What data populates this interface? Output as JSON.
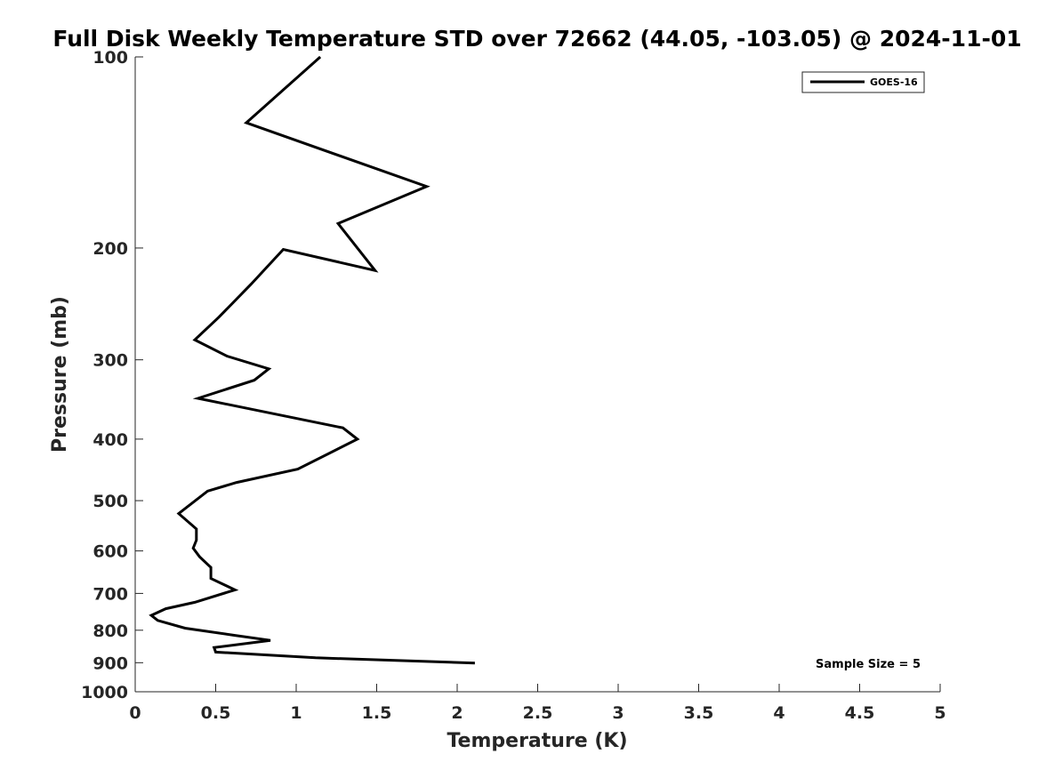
{
  "chart_data": {
    "type": "line",
    "title": "Full Disk Weekly Temperature STD over 72662 (44.05, -103.05) @ 2024-11-01",
    "xlabel": "Temperature (K)",
    "ylabel": "Pressure (mb)",
    "xlim": [
      0,
      5
    ],
    "ylim": [
      100,
      1000
    ],
    "y_scale": "log",
    "y_reversed": true,
    "x_ticks": [
      "0",
      "0.5",
      "1",
      "1.5",
      "2",
      "2.5",
      "3",
      "3.5",
      "4",
      "4.5",
      "5"
    ],
    "y_ticks": [
      "100",
      "200",
      "300",
      "400",
      "500",
      "600",
      "700",
      "800",
      "900",
      "1000"
    ],
    "grid": false,
    "legend": {
      "placement": "top-right",
      "entries": [
        "GOES-16"
      ]
    },
    "annotation": "Sample Size = 5",
    "series": [
      {
        "name": "GOES-16",
        "color": "#000000",
        "points": [
          [
            1.15,
            100
          ],
          [
            0.69,
            127
          ],
          [
            1.81,
            160
          ],
          [
            1.26,
            183
          ],
          [
            1.49,
            217
          ],
          [
            0.92,
            201
          ],
          [
            0.72,
            228
          ],
          [
            0.52,
            257
          ],
          [
            0.37,
            279
          ],
          [
            0.57,
            296
          ],
          [
            0.83,
            310
          ],
          [
            0.74,
            323
          ],
          [
            0.39,
            345
          ],
          [
            1.29,
            384
          ],
          [
            1.38,
            400
          ],
          [
            1.01,
            446
          ],
          [
            0.63,
            468
          ],
          [
            0.45,
            483
          ],
          [
            0.27,
            524
          ],
          [
            0.38,
            554
          ],
          [
            0.38,
            577
          ],
          [
            0.36,
            594
          ],
          [
            0.4,
            613
          ],
          [
            0.47,
            637
          ],
          [
            0.47,
            663
          ],
          [
            0.62,
            691
          ],
          [
            0.37,
            723
          ],
          [
            0.19,
            740
          ],
          [
            0.1,
            758
          ],
          [
            0.14,
            772
          ],
          [
            0.31,
            794
          ],
          [
            0.62,
            815
          ],
          [
            0.84,
            830
          ],
          [
            0.49,
            852
          ],
          [
            0.5,
            866
          ],
          [
            1.12,
            884
          ],
          [
            2.11,
            901
          ]
        ]
      }
    ]
  }
}
